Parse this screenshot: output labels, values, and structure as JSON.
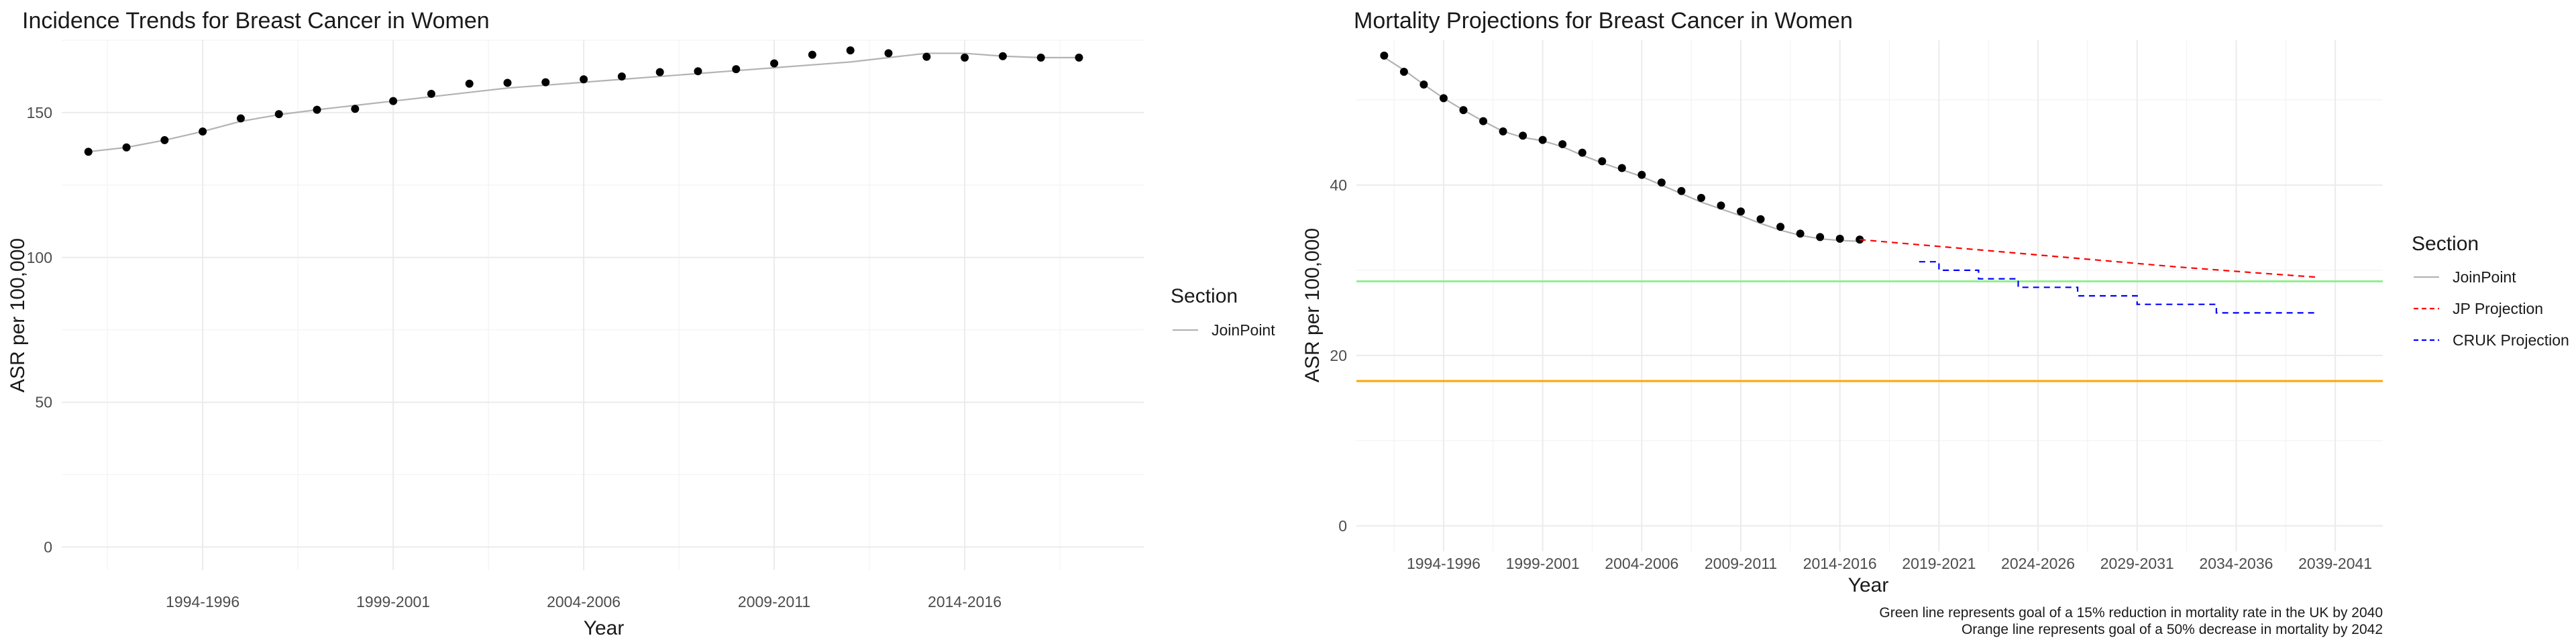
{
  "chart_data": [
    {
      "type": "line",
      "title": "Incidence Trends for Breast Cancer in Women",
      "xlabel": "Year",
      "ylabel": "ASR per 100,000",
      "x_range": [
        1992.3,
        2020.7
      ],
      "ylim": [
        -8,
        175
      ],
      "y_ticks": [
        0,
        50,
        100,
        150
      ],
      "x_ticks": [
        {
          "label": "1994-1996",
          "x": 1996
        },
        {
          "label": "1999-2001",
          "x": 2001
        },
        {
          "label": "2004-2006",
          "x": 2006
        },
        {
          "label": "2009-2011",
          "x": 2011
        },
        {
          "label": "2014-2016",
          "x": 2016
        }
      ],
      "legend": {
        "title": "Section",
        "position": "right",
        "entries": [
          {
            "label": "JoinPoint",
            "color": "#b3b3b3",
            "dash": "solid"
          }
        ]
      },
      "series": [
        {
          "name": "JoinPoint",
          "style": "line",
          "color": "#b3b3b3",
          "x": [
            1993,
            1994,
            1995,
            1996,
            1997,
            1998,
            1999,
            2000,
            2001,
            2002,
            2003,
            2004,
            2005,
            2006,
            2007,
            2008,
            2009,
            2010,
            2011,
            2012,
            2013,
            2014,
            2015,
            2016,
            2017,
            2018,
            2019
          ],
          "values": [
            136.5,
            138,
            140.5,
            143.5,
            147,
            149.3,
            151,
            152.5,
            154,
            155.5,
            157,
            158.5,
            159.5,
            160.5,
            161.5,
            162.5,
            163.5,
            164.5,
            165.5,
            166.5,
            167.5,
            169,
            170.5,
            170.5,
            169.5,
            169,
            169
          ]
        },
        {
          "name": "Observed",
          "style": "points",
          "color": "#000000",
          "x": [
            1993,
            1994,
            1995,
            1996,
            1997,
            1998,
            1999,
            2000,
            2001,
            2002,
            2003,
            2004,
            2005,
            2006,
            2007,
            2008,
            2009,
            2010,
            2011,
            2012,
            2013,
            2014,
            2015,
            2016,
            2017,
            2018,
            2019
          ],
          "values": [
            136.5,
            138,
            140.5,
            143.5,
            148,
            149.5,
            151,
            151.3,
            154,
            156.5,
            160,
            160.3,
            160.5,
            161.5,
            162.5,
            164,
            164.3,
            165,
            167,
            170,
            171.5,
            170.5,
            169.3,
            169,
            169.5,
            169,
            169
          ]
        }
      ]
    },
    {
      "type": "line",
      "title": "Mortality Projections for Breast Cancer in Women",
      "xlabel": "Year",
      "ylabel": "ASR per 100,000",
      "x_range": [
        1991.6,
        2043.4
      ],
      "ylim": [
        -3,
        57
      ],
      "y_ticks": [
        0,
        20,
        40
      ],
      "x_ticks": [
        {
          "label": "1994-1996",
          "x": 1996
        },
        {
          "label": "1999-2001",
          "x": 2001
        },
        {
          "label": "2004-2006",
          "x": 2006
        },
        {
          "label": "2009-2011",
          "x": 2011
        },
        {
          "label": "2014-2016",
          "x": 2016
        },
        {
          "label": "2019-2021",
          "x": 2021
        },
        {
          "label": "2024-2026",
          "x": 2026
        },
        {
          "label": "2029-2031",
          "x": 2031
        },
        {
          "label": "2034-2036",
          "x": 2036
        },
        {
          "label": "2039-2041",
          "x": 2041
        }
      ],
      "reference_lines": [
        {
          "y": 28.7,
          "color": "#90ee90"
        },
        {
          "y": 17,
          "color": "#ffa500"
        }
      ],
      "legend": {
        "title": "Section",
        "position": "right",
        "entries": [
          {
            "label": "JoinPoint",
            "color": "#b3b3b3",
            "dash": "solid"
          },
          {
            "label": "JP Projection",
            "color": "#ff0000",
            "dash": "dashed"
          },
          {
            "label": "CRUK Projection",
            "color": "#0000ff",
            "dash": "dashed"
          }
        ]
      },
      "series": [
        {
          "name": "JoinPoint",
          "style": "line",
          "color": "#b3b3b3",
          "x": [
            1993,
            1994,
            1995,
            1996,
            1997,
            1998,
            1999,
            2000,
            2001,
            2002,
            2003,
            2004,
            2005,
            2006,
            2007,
            2008,
            2009,
            2010,
            2011,
            2012,
            2013,
            2014,
            2015,
            2016,
            2017
          ],
          "values": [
            55,
            53.5,
            51.8,
            50.2,
            48.8,
            47.5,
            46.3,
            45.6,
            45.2,
            44.5,
            43.5,
            42.6,
            41.8,
            41,
            40,
            39,
            38,
            37.2,
            36.4,
            35.5,
            34.7,
            34.1,
            33.7,
            33.5,
            33.4
          ]
        },
        {
          "name": "Observed",
          "style": "points",
          "color": "#000000",
          "x": [
            1993,
            1994,
            1995,
            1996,
            1997,
            1998,
            1999,
            2000,
            2001,
            2002,
            2003,
            2004,
            2005,
            2006,
            2007,
            2008,
            2009,
            2010,
            2011,
            2012,
            2013,
            2014,
            2015,
            2016,
            2017
          ],
          "values": [
            55.2,
            53.3,
            51.8,
            50.2,
            48.8,
            47.5,
            46.3,
            45.8,
            45.3,
            44.8,
            43.8,
            42.8,
            42,
            41.2,
            40.3,
            39.3,
            38.5,
            37.6,
            36.9,
            36,
            35.1,
            34.3,
            33.9,
            33.7,
            33.6
          ]
        },
        {
          "name": "JP Projection",
          "style": "dashed",
          "color": "#ff0000",
          "x": [
            2017,
            2021,
            2025,
            2029,
            2033,
            2037,
            2040
          ],
          "values": [
            33.6,
            32.8,
            32,
            31.2,
            30.4,
            29.7,
            29.2
          ]
        },
        {
          "name": "CRUK Projection",
          "style": "dashed-step",
          "color": "#0000ff",
          "x": [
            2020,
            2021,
            2022,
            2023,
            2024,
            2025,
            2026,
            2027,
            2028,
            2029,
            2030,
            2031,
            2032,
            2033,
            2034,
            2035,
            2036,
            2037,
            2038,
            2039,
            2040
          ],
          "values": [
            31,
            30,
            30,
            29,
            29,
            28,
            28,
            28,
            27,
            27,
            27,
            26,
            26,
            26,
            26,
            25,
            25,
            25,
            25,
            25,
            25
          ]
        }
      ],
      "captions": [
        "Green line represents goal of a 15% reduction in mortality rate in the UK by 2040",
        "Orange line represents goal of a 50% decrease in mortality by 2042"
      ]
    }
  ]
}
